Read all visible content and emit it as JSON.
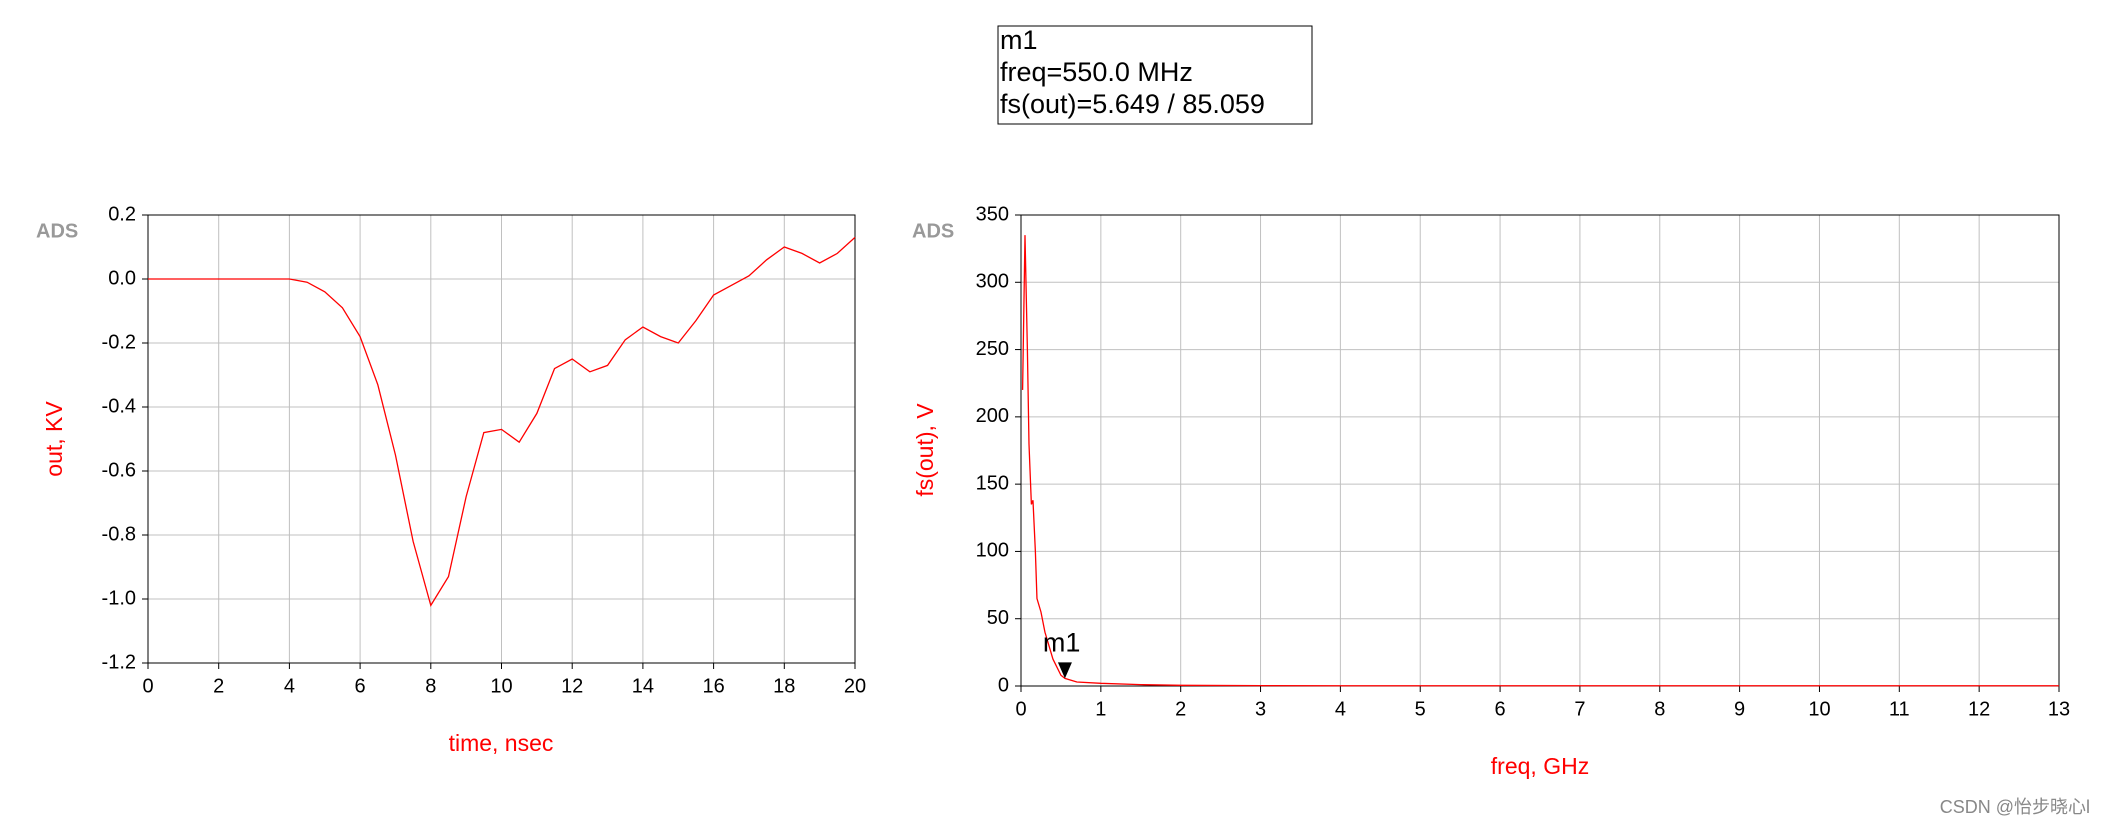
{
  "chart_data": [
    {
      "type": "line",
      "label": "ADS",
      "xlabel": "time, nsec",
      "ylabel": "out, KV",
      "xlim": [
        0,
        20
      ],
      "xticks": [
        0,
        2,
        4,
        6,
        8,
        10,
        12,
        14,
        16,
        18,
        20
      ],
      "ylim": [
        -1.2,
        0.2
      ],
      "yticks": [
        -1.2,
        {
          "value": -1,
          "label": "-1.0"
        },
        -0.8,
        -0.6,
        -0.4,
        -0.2,
        {
          "value": 0,
          "label": "0.0"
        },
        0.2
      ],
      "grid": true,
      "x": [
        0,
        1,
        2,
        3,
        4,
        4.5,
        5,
        5.5,
        6,
        6.5,
        7,
        7.5,
        8,
        8.5,
        9,
        9.5,
        10,
        10.5,
        11,
        11.5,
        12,
        12.5,
        13,
        13.5,
        14,
        14.5,
        15,
        15.5,
        16,
        16.5,
        17,
        17.5,
        18,
        18.5,
        19,
        19.5,
        20
      ],
      "series": [
        {
          "name": "out",
          "color": "#ff0000",
          "values": [
            0,
            0,
            0,
            0,
            0,
            -0.01,
            -0.04,
            -0.09,
            -0.18,
            -0.33,
            -0.55,
            -0.82,
            -1.02,
            -0.93,
            -0.68,
            -0.48,
            -0.47,
            -0.51,
            -0.42,
            -0.28,
            -0.25,
            -0.29,
            -0.27,
            -0.19,
            -0.15,
            -0.18,
            -0.2,
            -0.13,
            -0.05,
            -0.02,
            0.01,
            0.06,
            0.1,
            0.08,
            0.05,
            0.08,
            0.13
          ]
        }
      ]
    },
    {
      "type": "line",
      "label": "ADS",
      "xlabel": "freq, GHz",
      "ylabel": "fs(out), V",
      "xlim": [
        0,
        13
      ],
      "xticks": [
        0,
        1,
        2,
        3,
        4,
        5,
        6,
        7,
        8,
        9,
        10,
        11,
        12,
        13
      ],
      "ylim": [
        0,
        350
      ],
      "yticks": [
        0,
        50,
        100,
        150,
        200,
        250,
        300,
        350
      ],
      "grid": true,
      "x": [
        0.02,
        0.05,
        0.08,
        0.1,
        0.13,
        0.15,
        0.18,
        0.2,
        0.25,
        0.3,
        0.4,
        0.5,
        0.55,
        0.7,
        1,
        1.5,
        2,
        3,
        4,
        5,
        6,
        7,
        8,
        9,
        10,
        11,
        12,
        13
      ],
      "series": [
        {
          "name": "fs(out)",
          "color": "#ff0000",
          "values": [
            220,
            335,
            250,
            180,
            135,
            138,
            100,
            65,
            55,
            40,
            20,
            8,
            5.649,
            3,
            2,
            1,
            0.5,
            0.3,
            0.2,
            0.2,
            0.2,
            0.2,
            0.2,
            0.2,
            0.2,
            0.2,
            0.2,
            0.2
          ]
        }
      ],
      "marker": {
        "name": "m1",
        "x": 0.55,
        "y": 5.649,
        "box_lines": [
          "m1",
          "freq=550.0 MHz",
          "fs(out)=5.649 / 85.059"
        ]
      }
    }
  ],
  "watermark": "CSDN @怡步晓心l"
}
